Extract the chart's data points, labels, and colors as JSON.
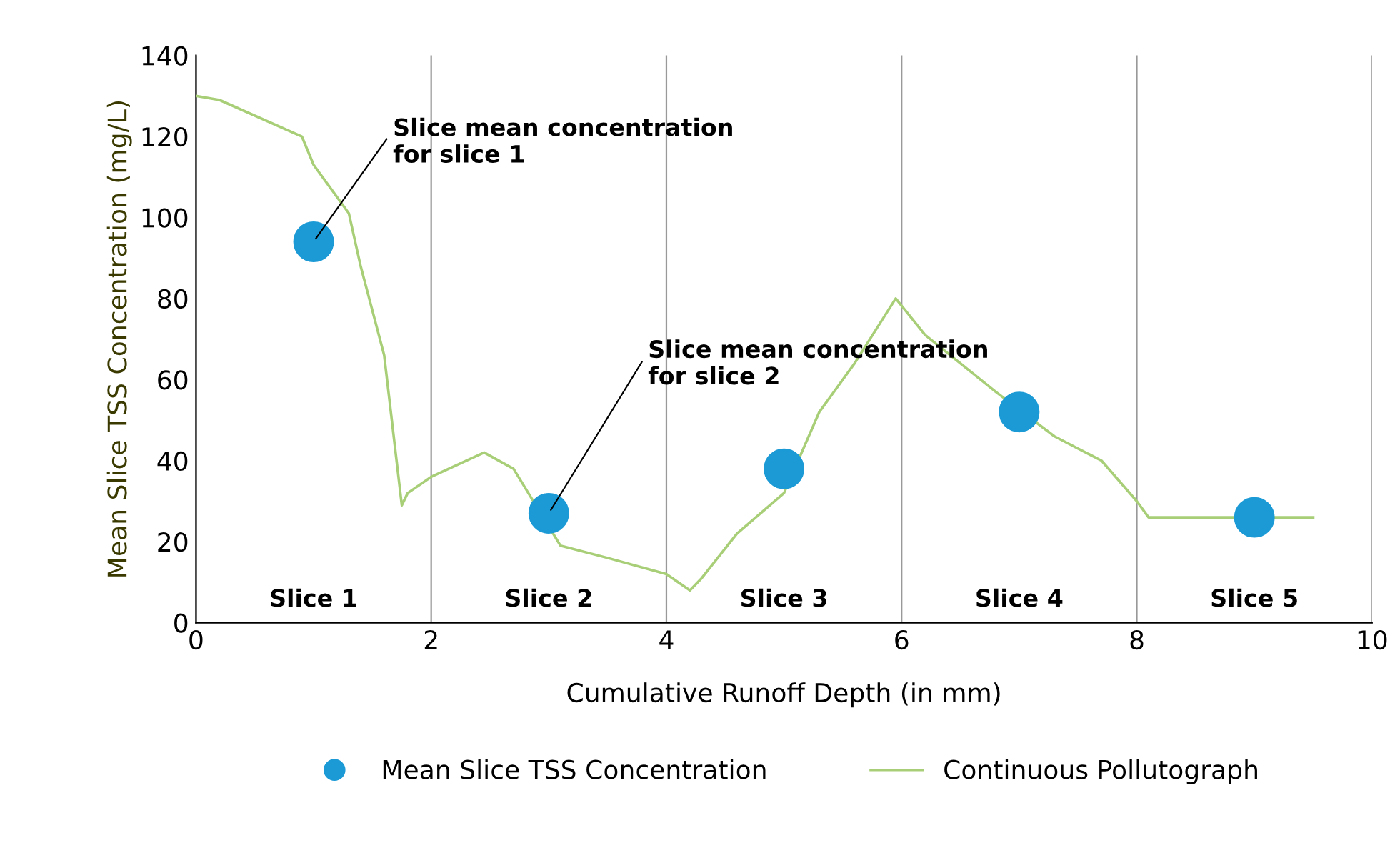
{
  "chart_data": {
    "type": "line",
    "xlabel": "Cumulative Runoff Depth (in mm)",
    "ylabel": "Mean Slice TSS Concentration (mg/L)",
    "xlim": [
      0,
      10
    ],
    "ylim": [
      0,
      140
    ],
    "xticks": [
      0,
      2,
      4,
      6,
      8,
      10
    ],
    "yticks": [
      0,
      20,
      40,
      60,
      80,
      100,
      120,
      140
    ],
    "grid": "x",
    "legend": "bottom",
    "series": [
      {
        "name": "Mean Slice TSS Concentration",
        "type": "scatter",
        "marker": "circle",
        "color": "#1b9ad6",
        "x": [
          1,
          3,
          5,
          7,
          9
        ],
        "values": [
          94,
          27,
          38,
          52,
          26
        ]
      },
      {
        "name": "Continuous Pollutograph",
        "color": "#a8cf78",
        "x": [
          0,
          0.2,
          0.9,
          1.0,
          1.3,
          1.4,
          1.6,
          1.75,
          1.8,
          2.0,
          2.45,
          2.7,
          3.1,
          3.5,
          4.0,
          4.2,
          4.3,
          4.6,
          5.0,
          5.3,
          5.6,
          5.95,
          6.2,
          6.8,
          7.3,
          7.7,
          8.0,
          8.1,
          9.5
        ],
        "values": [
          130,
          129,
          120,
          113,
          101,
          88,
          66,
          29,
          32,
          36,
          42,
          38,
          19,
          16,
          12,
          8,
          11,
          22,
          32,
          52,
          64,
          80,
          71,
          57,
          46,
          40,
          30,
          26,
          26
        ]
      }
    ],
    "annotations": [
      {
        "text": "Slice mean concentration\nfor slice 1",
        "x": 1,
        "y": 94
      },
      {
        "text": "Slice mean concentration\nfor slice 2",
        "x": 3,
        "y": 27
      },
      "Slice 1",
      "Slice 2",
      "Slice 3",
      "Slice 4",
      "Slice 5"
    ]
  }
}
